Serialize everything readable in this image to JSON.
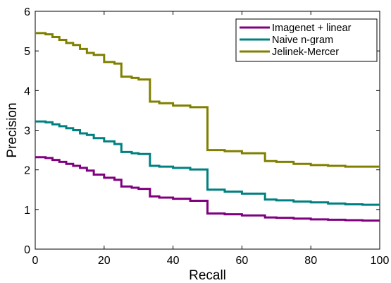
{
  "chart_data": {
    "type": "line",
    "title": "",
    "xlabel": "Recall",
    "ylabel": "Precision",
    "xlim": [
      0,
      100
    ],
    "ylim": [
      0,
      6
    ],
    "xticks": [
      0,
      20,
      40,
      60,
      80,
      100
    ],
    "yticks": [
      0,
      1,
      2,
      3,
      4,
      5,
      6
    ],
    "grid": false,
    "legend_position": "top-right",
    "series": [
      {
        "name": "Imagenet + linear",
        "color": "#800080",
        "x": [
          0,
          3,
          5,
          7,
          9,
          11,
          13,
          15,
          17,
          20,
          23,
          25,
          28,
          30,
          33.3,
          36,
          40,
          45,
          50,
          55,
          60,
          66.7,
          70,
          75,
          80,
          85,
          90,
          95,
          100
        ],
        "y": [
          2.32,
          2.3,
          2.25,
          2.2,
          2.15,
          2.1,
          2.05,
          1.98,
          1.88,
          1.8,
          1.75,
          1.58,
          1.55,
          1.52,
          1.33,
          1.3,
          1.27,
          1.22,
          0.9,
          0.88,
          0.85,
          0.8,
          0.79,
          0.77,
          0.75,
          0.74,
          0.73,
          0.72,
          0.72
        ]
      },
      {
        "name": "Naive n-gram",
        "color": "#008080",
        "x": [
          0,
          3,
          5,
          7,
          9,
          11,
          13,
          15,
          17,
          20,
          23,
          25,
          28,
          30,
          33.3,
          36,
          40,
          45,
          50,
          55,
          60,
          66.7,
          70,
          75,
          80,
          85,
          90,
          95,
          100
        ],
        "y": [
          3.22,
          3.2,
          3.15,
          3.1,
          3.05,
          3.0,
          2.92,
          2.88,
          2.8,
          2.72,
          2.65,
          2.45,
          2.42,
          2.4,
          2.1,
          2.08,
          2.05,
          2.01,
          1.5,
          1.45,
          1.4,
          1.25,
          1.23,
          1.2,
          1.18,
          1.15,
          1.13,
          1.12,
          1.12
        ]
      },
      {
        "name": "Jelinek-Mercer",
        "color": "#808000",
        "x": [
          0,
          3,
          5,
          7,
          9,
          11,
          13,
          15,
          17,
          20,
          23,
          25,
          28,
          30,
          33.3,
          36,
          40,
          45,
          50,
          55,
          60,
          66.7,
          70,
          75,
          80,
          85,
          90,
          95,
          100
        ],
        "y": [
          5.45,
          5.42,
          5.35,
          5.28,
          5.2,
          5.15,
          5.05,
          4.95,
          4.9,
          4.72,
          4.68,
          4.35,
          4.32,
          4.28,
          3.72,
          3.68,
          3.62,
          3.58,
          2.5,
          2.47,
          2.42,
          2.22,
          2.2,
          2.15,
          2.12,
          2.1,
          2.08,
          2.08,
          2.08
        ]
      }
    ]
  }
}
